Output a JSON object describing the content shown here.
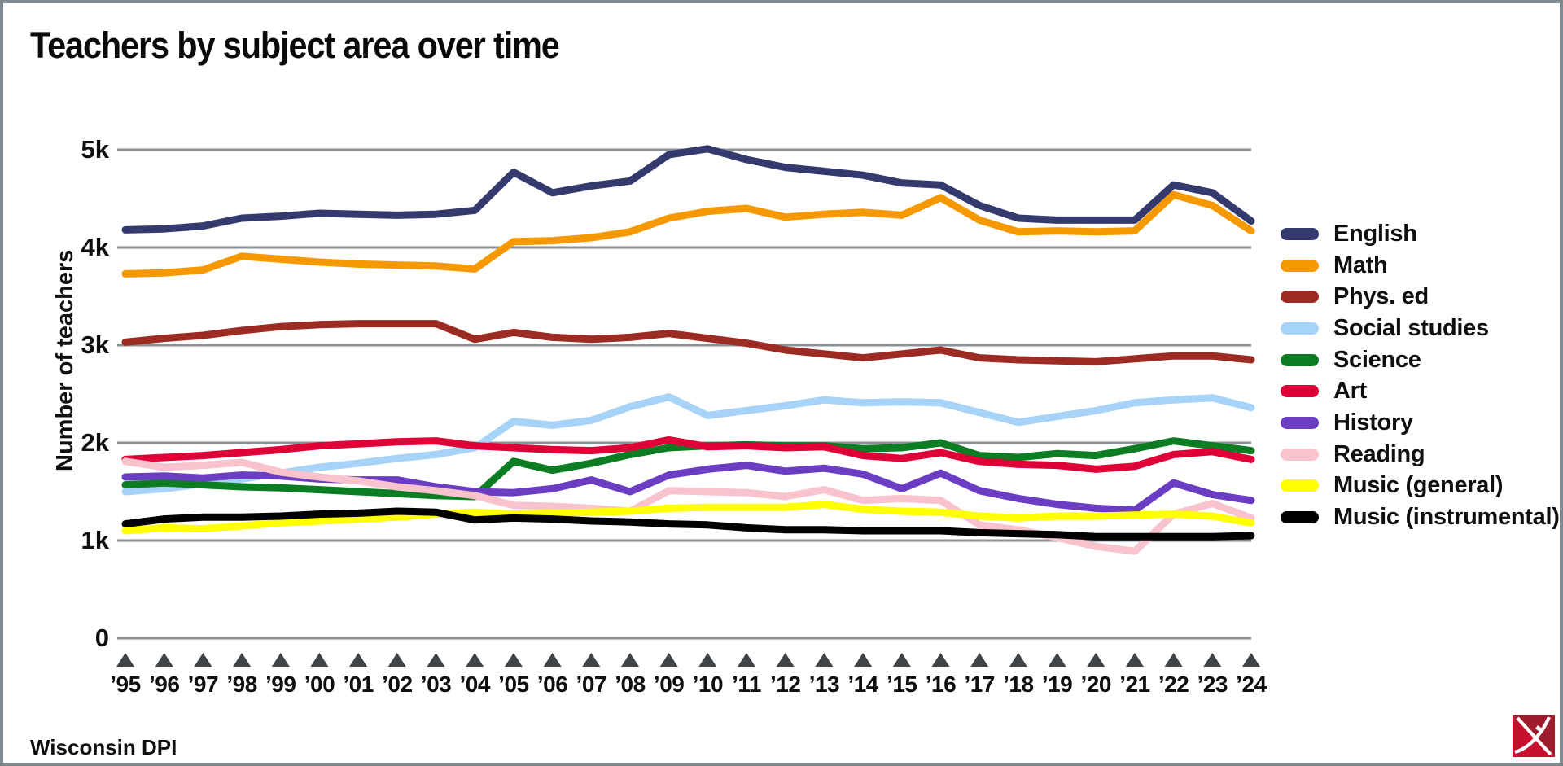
{
  "title": "Teachers by subject area over time",
  "source": "Wisconsin DPI",
  "y_axis": {
    "label": "Number of teachers",
    "ticks": [
      "5k",
      "4k",
      "3k",
      "2k",
      "1k",
      "0"
    ],
    "tick_values": [
      5000,
      4000,
      3000,
      2000,
      1000,
      0
    ]
  },
  "colors": {
    "gridline": "#8a9299",
    "marker": "#3f4448",
    "frame_border": "#7e898d",
    "text": "#0f0f0f",
    "logo_red": "#c8102e",
    "logo_dark_red": "#9e1b2e",
    "logo_cross": "#ffffff"
  },
  "chart_data": {
    "type": "line",
    "title": "Teachers by subject area over time",
    "xlabel": "",
    "ylabel": "Number of teachers",
    "ylim": [
      0,
      5420
    ],
    "grid": "horizontal",
    "legend_position": "right",
    "x": [
      1995,
      1996,
      1997,
      1998,
      1999,
      2000,
      2001,
      2002,
      2003,
      2004,
      2005,
      2006,
      2007,
      2008,
      2009,
      2010,
      2011,
      2012,
      2013,
      2014,
      2015,
      2016,
      2017,
      2018,
      2019,
      2020,
      2021,
      2022,
      2023,
      2024
    ],
    "x_tick_labels": [
      "’95",
      "’96",
      "’97",
      "’98",
      "’99",
      "’00",
      "’01",
      "’02",
      "’03",
      "’04",
      "’05",
      "’06",
      "’07",
      "’08",
      "’09",
      "’10",
      "’11",
      "’12",
      "’13",
      "’14",
      "’15",
      "’16",
      "’17",
      "’18",
      "’19",
      "’20",
      "’21",
      "’22",
      "’23",
      "’24"
    ],
    "series": [
      {
        "name": "English",
        "color": "#343a6d",
        "values": [
          4180,
          4190,
          4220,
          4300,
          4320,
          4350,
          4340,
          4330,
          4340,
          4380,
          4770,
          4560,
          4630,
          4680,
          4950,
          5010,
          4900,
          4820,
          4780,
          4740,
          4660,
          4640,
          4430,
          4300,
          4280,
          4280,
          4280,
          4640,
          4560,
          4270
        ]
      },
      {
        "name": "Math",
        "color": "#f69800",
        "values": [
          3730,
          3740,
          3770,
          3910,
          3880,
          3850,
          3830,
          3820,
          3810,
          3780,
          4060,
          4070,
          4100,
          4160,
          4300,
          4370,
          4400,
          4310,
          4340,
          4360,
          4330,
          4510,
          4280,
          4160,
          4170,
          4160,
          4170,
          4540,
          4430,
          4170
        ]
      },
      {
        "name": "Phys. ed",
        "color": "#9c2b23",
        "values": [
          3030,
          3070,
          3100,
          3150,
          3190,
          3210,
          3220,
          3220,
          3220,
          3060,
          3130,
          3080,
          3060,
          3080,
          3120,
          3070,
          3020,
          2950,
          2910,
          2870,
          2910,
          2950,
          2870,
          2850,
          2840,
          2830,
          2860,
          2890,
          2890,
          2850
        ]
      },
      {
        "name": "Social studies",
        "color": "#a6d3f7",
        "values": [
          1500,
          1530,
          1580,
          1630,
          1690,
          1750,
          1790,
          1840,
          1880,
          1950,
          2220,
          2180,
          2230,
          2370,
          2470,
          2280,
          2330,
          2380,
          2440,
          2410,
          2420,
          2410,
          2310,
          2210,
          2270,
          2330,
          2410,
          2440,
          2460,
          2360
        ]
      },
      {
        "name": "Science",
        "color": "#0c7d23",
        "values": [
          1570,
          1590,
          1570,
          1550,
          1540,
          1520,
          1500,
          1480,
          1460,
          1450,
          1810,
          1720,
          1790,
          1880,
          1950,
          1970,
          1980,
          1970,
          1970,
          1940,
          1950,
          2000,
          1870,
          1850,
          1890,
          1870,
          1940,
          2020,
          1970,
          1920
        ]
      },
      {
        "name": "Art",
        "color": "#e00038",
        "values": [
          1830,
          1850,
          1870,
          1900,
          1930,
          1970,
          1990,
          2010,
          2020,
          1970,
          1950,
          1930,
          1920,
          1950,
          2030,
          1960,
          1970,
          1950,
          1960,
          1870,
          1840,
          1900,
          1810,
          1780,
          1770,
          1730,
          1760,
          1880,
          1910,
          1830
        ]
      },
      {
        "name": "History",
        "color": "#6a3dc3",
        "values": [
          1650,
          1660,
          1640,
          1670,
          1660,
          1630,
          1620,
          1620,
          1550,
          1500,
          1490,
          1530,
          1620,
          1500,
          1670,
          1730,
          1770,
          1710,
          1740,
          1680,
          1530,
          1690,
          1510,
          1430,
          1370,
          1330,
          1310,
          1590,
          1470,
          1410
        ]
      },
      {
        "name": "Reading",
        "color": "#f9c3ce",
        "values": [
          1810,
          1750,
          1770,
          1800,
          1700,
          1650,
          1610,
          1550,
          1510,
          1460,
          1360,
          1350,
          1330,
          1300,
          1510,
          1500,
          1490,
          1450,
          1520,
          1410,
          1430,
          1410,
          1160,
          1110,
          1030,
          940,
          890,
          1270,
          1380,
          1230
        ]
      },
      {
        "name": "Music (general)",
        "color": "#ffff00",
        "values": [
          1100,
          1130,
          1120,
          1150,
          1180,
          1200,
          1220,
          1240,
          1270,
          1290,
          1270,
          1280,
          1290,
          1300,
          1330,
          1340,
          1340,
          1340,
          1370,
          1320,
          1300,
          1290,
          1250,
          1230,
          1250,
          1250,
          1260,
          1270,
          1250,
          1180
        ]
      },
      {
        "name": "Music (instrumental)",
        "color": "#000000",
        "values": [
          1170,
          1220,
          1240,
          1240,
          1250,
          1270,
          1280,
          1300,
          1290,
          1210,
          1230,
          1220,
          1200,
          1190,
          1170,
          1160,
          1130,
          1110,
          1110,
          1100,
          1100,
          1100,
          1080,
          1070,
          1060,
          1040,
          1040,
          1040,
          1040,
          1050
        ]
      }
    ]
  }
}
